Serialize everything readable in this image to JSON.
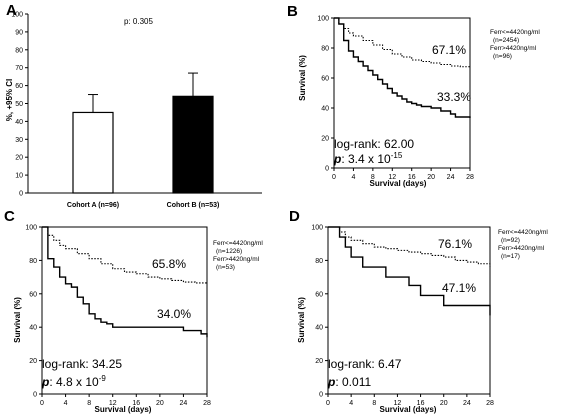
{
  "chart_data": [
    {
      "panel": "A",
      "type": "bar",
      "categories": [
        "Cohort A (n=96)",
        "Cohort B (n=53)"
      ],
      "values": [
        45,
        54
      ],
      "errors": [
        10,
        13
      ],
      "fills": [
        "#ffffff",
        "#000000"
      ],
      "ylabel": "%, +95% CI",
      "ylim": [
        0,
        100
      ],
      "yticks": [
        "0",
        "10",
        "20",
        "30",
        "40",
        "50",
        "60",
        "70",
        "80",
        "90",
        "100"
      ],
      "annotation": "p: 0.305"
    },
    {
      "panel": "B",
      "type": "line",
      "xlabel": "Survival (days)",
      "ylabel": "Survival (%)",
      "xlim": [
        0,
        28
      ],
      "ylim": [
        0,
        100
      ],
      "xticks": [
        "0",
        "4",
        "8",
        "12",
        "16",
        "20",
        "24",
        "28"
      ],
      "yticks": [
        "0",
        "20",
        "40",
        "60",
        "80",
        "100"
      ],
      "series": [
        {
          "name": "Ferr<=4420ng/ml",
          "n": "(n=2454)",
          "style": "dotted",
          "x": [
            0,
            1,
            2,
            3,
            4,
            6,
            8,
            10,
            12,
            14,
            16,
            18,
            20,
            22,
            24,
            26,
            28
          ],
          "y": [
            100,
            96,
            93,
            90,
            88,
            85,
            82,
            79,
            76,
            74,
            72,
            71,
            70,
            69,
            68,
            67.5,
            67.1
          ]
        },
        {
          "name": "Ferr>4420ng/ml",
          "n": "(n=96)",
          "style": "solid",
          "x": [
            0,
            1,
            2,
            3,
            4,
            5,
            6,
            7,
            8,
            9,
            10,
            11,
            12,
            13,
            14,
            15,
            16,
            17,
            18,
            20,
            22,
            24,
            25,
            28
          ],
          "y": [
            100,
            96,
            85,
            78,
            74,
            71,
            68,
            65,
            62,
            59,
            56,
            53,
            50,
            48,
            46,
            44,
            43,
            42,
            41,
            40,
            38,
            36,
            34,
            33.3
          ]
        }
      ],
      "labels": [
        "67.1%",
        "33.3%"
      ],
      "stat_line1": "log-rank: 62.00",
      "stat_p_prefix": "p",
      "stat_line2": ": 3.4 x 10",
      "stat_exp": "-15"
    },
    {
      "panel": "C",
      "type": "line",
      "xlabel": "Survival (days)",
      "ylabel": "Survival (%)",
      "xlim": [
        0,
        28
      ],
      "ylim": [
        0,
        100
      ],
      "xticks": [
        "0",
        "4",
        "8",
        "12",
        "16",
        "20",
        "24",
        "28"
      ],
      "yticks": [
        "0",
        "20",
        "40",
        "60",
        "80",
        "100"
      ],
      "series": [
        {
          "name": "Ferr<=4420ng/ml",
          "n": "(n=1226)",
          "style": "dotted",
          "x": [
            0,
            1,
            2,
            3,
            4,
            6,
            8,
            10,
            12,
            14,
            16,
            18,
            20,
            22,
            24,
            26,
            28
          ],
          "y": [
            100,
            95,
            92,
            89,
            87,
            84,
            81,
            78,
            75,
            73,
            72,
            70,
            69,
            68,
            67,
            66.5,
            65.8
          ]
        },
        {
          "name": "Ferr>4420ng/ml",
          "n": "(n=53)",
          "style": "solid",
          "x": [
            0,
            1,
            2,
            3,
            4,
            5,
            6,
            7,
            8,
            9,
            10,
            11,
            12,
            16,
            20,
            24,
            27,
            28
          ],
          "y": [
            100,
            81,
            76,
            70,
            66,
            64,
            58,
            54,
            48,
            45,
            43,
            42,
            40,
            40,
            40,
            38,
            36,
            34.0
          ]
        }
      ],
      "labels": [
        "65.8%",
        "34.0%"
      ],
      "stat_line1": "log-rank: 34.25",
      "stat_p_prefix": "p",
      "stat_line2": ": 4.8 x 10",
      "stat_exp": "-9"
    },
    {
      "panel": "D",
      "type": "line",
      "xlabel": "Survival (days)",
      "ylabel": "Survival (%)",
      "xlim": [
        0,
        28
      ],
      "ylim": [
        0,
        100
      ],
      "xticks": [
        "0",
        "4",
        "8",
        "12",
        "16",
        "20",
        "24",
        "28"
      ],
      "yticks": [
        "0",
        "20",
        "40",
        "60",
        "80",
        "100"
      ],
      "series": [
        {
          "name": "Ferr<=4420ng/ml",
          "n": "(n=92)",
          "style": "dotted",
          "x": [
            0,
            2,
            3,
            4,
            6,
            8,
            10,
            12,
            14,
            16,
            18,
            20,
            22,
            24,
            26,
            28
          ],
          "y": [
            100,
            97,
            94,
            92,
            90,
            88,
            87,
            86,
            85,
            84,
            83,
            82,
            80,
            79,
            78,
            76.1
          ]
        },
        {
          "name": "Ferr>4420ng/ml",
          "n": "(n=17)",
          "style": "solid",
          "x": [
            0,
            2,
            3,
            4,
            6,
            8,
            10,
            12,
            14,
            16,
            18,
            20,
            24,
            28
          ],
          "y": [
            100,
            94,
            88,
            82,
            76,
            76,
            70,
            70,
            65,
            59,
            59,
            53,
            53,
            47.1
          ]
        }
      ],
      "labels": [
        "76.1%",
        "47.1%"
      ],
      "stat_line1": "log-rank: 6.47",
      "stat_p_prefix": "p",
      "stat_line2": ": 0.011",
      "stat_exp": ""
    }
  ]
}
